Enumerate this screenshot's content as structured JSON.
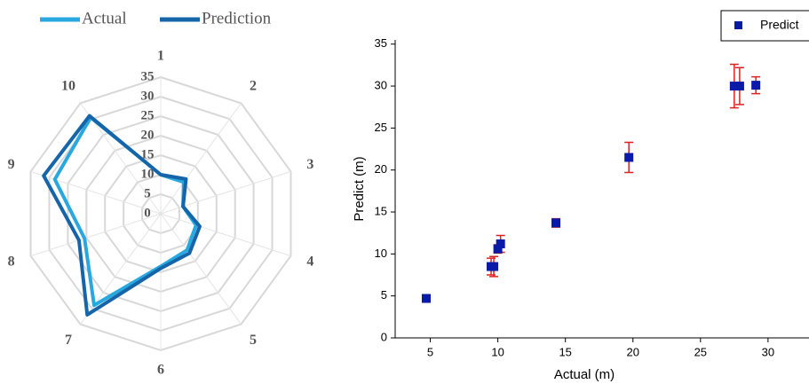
{
  "chart_data": [
    {
      "type": "radar",
      "categories": [
        "1",
        "2",
        "3",
        "4",
        "5",
        "6",
        "7",
        "8",
        "9",
        "10"
      ],
      "series": [
        {
          "name": "Actual",
          "color": "#29a8e0",
          "values": [
            10,
            10,
            6,
            9.5,
            11.5,
            13.5,
            29,
            20.5,
            28.5,
            30.5
          ]
        },
        {
          "name": "Prediction",
          "color": "#1565a8",
          "values": [
            10,
            11,
            6,
            10.5,
            12.5,
            14,
            32,
            22,
            31.5,
            31
          ]
        }
      ],
      "rlim": [
        0,
        35
      ],
      "rticks": [
        0,
        5,
        10,
        15,
        20,
        25,
        30,
        35
      ],
      "grid": true
    },
    {
      "type": "scatter",
      "xlabel": "Actual (m)",
      "ylabel": "Predict (m)",
      "series": [
        {
          "name": "Predict",
          "color": "#0a1aa8",
          "error_color": "#e02020",
          "x": [
            4.7,
            9.5,
            9.7,
            10.0,
            10.2,
            14.3,
            19.7,
            27.5,
            27.9,
            29.1
          ],
          "values": [
            4.7,
            8.5,
            8.5,
            10.6,
            11.2,
            13.7,
            21.5,
            30,
            30,
            30.1
          ],
          "errors": [
            0.3,
            1,
            1.2,
            0.5,
            1,
            0.5,
            1.8,
            2.6,
            2.2,
            1
          ]
        }
      ],
      "xlim": [
        2.4,
        33
      ],
      "ylim": [
        0,
        35.5
      ],
      "xticks": [
        5,
        10,
        15,
        20,
        25,
        30
      ],
      "yticks": [
        0,
        5,
        10,
        15,
        20,
        25,
        30,
        35
      ]
    }
  ]
}
